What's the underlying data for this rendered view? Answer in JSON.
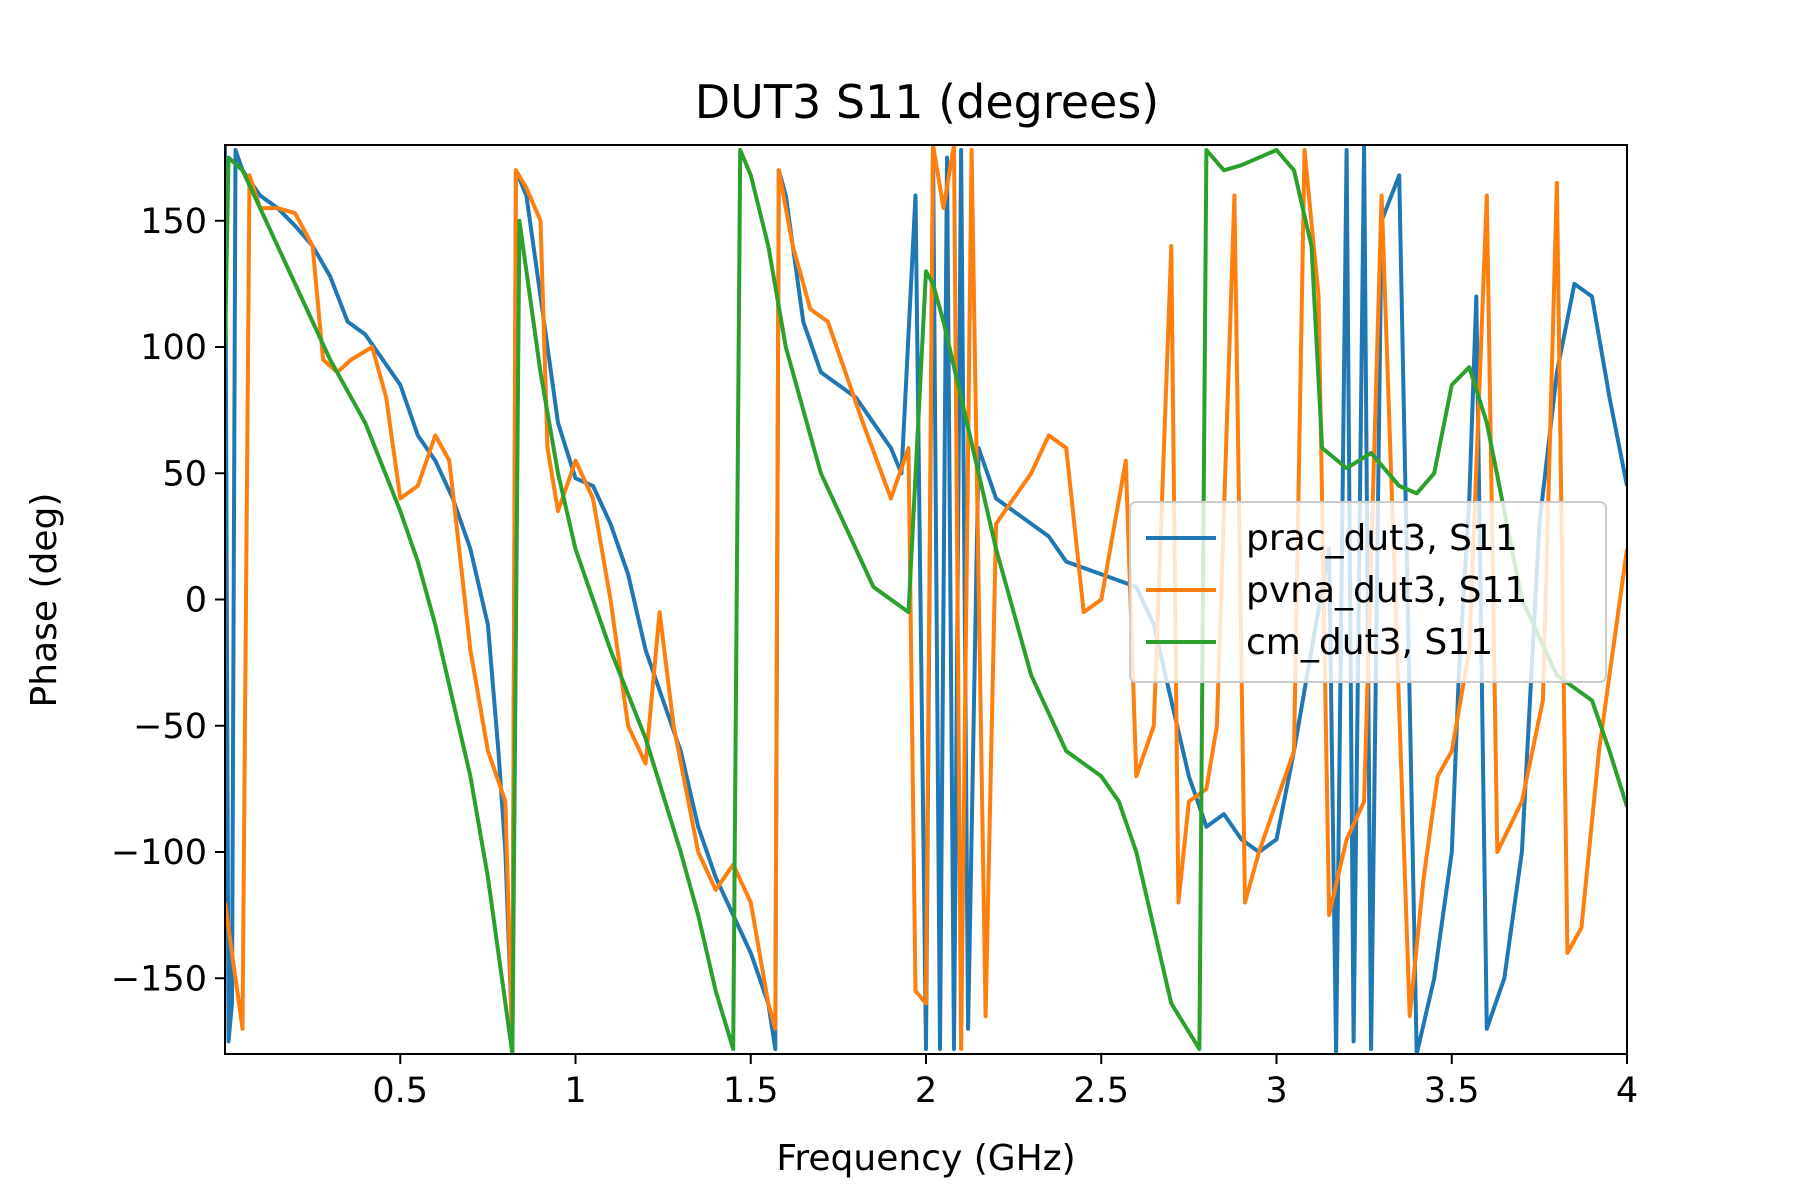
{
  "chart_data": {
    "type": "line",
    "title": "DUT3 S11 (degrees)",
    "xlabel": "Frequency (GHz)",
    "ylabel": "Phase (deg)",
    "xlim": [
      0.0,
      4.0
    ],
    "ylim": [
      -180,
      180
    ],
    "x_ticks": [
      0.5,
      1,
      1.5,
      2,
      2.5,
      3,
      3.5,
      4
    ],
    "x_tick_labels": [
      "0.5",
      "1",
      "1.5",
      "2",
      "2.5",
      "3",
      "3.5",
      "4"
    ],
    "y_ticks": [
      150,
      100,
      50,
      0,
      -50,
      -100,
      -150
    ],
    "y_tick_labels": [
      "150",
      "100",
      "50",
      "0",
      "−50",
      "−100",
      "−150"
    ],
    "grid": false,
    "legend_position": "center-right",
    "series": [
      {
        "name": "prac_dut3, S11",
        "color": "#1f77b4",
        "points": [
          [
            0.0,
            180
          ],
          [
            0.01,
            -175
          ],
          [
            0.02,
            -160
          ],
          [
            0.03,
            178
          ],
          [
            0.05,
            170
          ],
          [
            0.1,
            160
          ],
          [
            0.15,
            155
          ],
          [
            0.2,
            148
          ],
          [
            0.25,
            140
          ],
          [
            0.3,
            128
          ],
          [
            0.35,
            110
          ],
          [
            0.4,
            105
          ],
          [
            0.45,
            95
          ],
          [
            0.5,
            85
          ],
          [
            0.55,
            65
          ],
          [
            0.6,
            55
          ],
          [
            0.65,
            40
          ],
          [
            0.7,
            20
          ],
          [
            0.75,
            -10
          ],
          [
            0.78,
            -60
          ],
          [
            0.8,
            -100
          ],
          [
            0.82,
            -175
          ],
          [
            0.83,
            170
          ],
          [
            0.86,
            160
          ],
          [
            0.9,
            120
          ],
          [
            0.95,
            70
          ],
          [
            1.0,
            48
          ],
          [
            1.05,
            45
          ],
          [
            1.1,
            30
          ],
          [
            1.15,
            10
          ],
          [
            1.2,
            -20
          ],
          [
            1.25,
            -40
          ],
          [
            1.3,
            -60
          ],
          [
            1.35,
            -90
          ],
          [
            1.4,
            -110
          ],
          [
            1.45,
            -125
          ],
          [
            1.5,
            -140
          ],
          [
            1.55,
            -160
          ],
          [
            1.57,
            -178
          ],
          [
            1.58,
            170
          ],
          [
            1.6,
            160
          ],
          [
            1.65,
            110
          ],
          [
            1.7,
            90
          ],
          [
            1.75,
            85
          ],
          [
            1.8,
            80
          ],
          [
            1.85,
            70
          ],
          [
            1.9,
            60
          ],
          [
            1.93,
            50
          ],
          [
            1.97,
            160
          ],
          [
            2.0,
            -178
          ],
          [
            2.02,
            180
          ],
          [
            2.04,
            -178
          ],
          [
            2.06,
            175
          ],
          [
            2.08,
            -178
          ],
          [
            2.1,
            178
          ],
          [
            2.12,
            -170
          ],
          [
            2.15,
            60
          ],
          [
            2.2,
            40
          ],
          [
            2.25,
            35
          ],
          [
            2.3,
            30
          ],
          [
            2.35,
            25
          ],
          [
            2.4,
            15
          ],
          [
            2.5,
            10
          ],
          [
            2.6,
            5
          ],
          [
            2.65,
            -10
          ],
          [
            2.7,
            -40
          ],
          [
            2.75,
            -70
          ],
          [
            2.8,
            -90
          ],
          [
            2.85,
            -85
          ],
          [
            2.9,
            -95
          ],
          [
            2.95,
            -100
          ],
          [
            3.0,
            -95
          ],
          [
            3.05,
            -60
          ],
          [
            3.1,
            -20
          ],
          [
            3.15,
            20
          ],
          [
            3.17,
            -180
          ],
          [
            3.2,
            178
          ],
          [
            3.22,
            -175
          ],
          [
            3.25,
            180
          ],
          [
            3.27,
            -178
          ],
          [
            3.3,
            150
          ],
          [
            3.35,
            168
          ],
          [
            3.4,
            -180
          ],
          [
            3.45,
            -150
          ],
          [
            3.5,
            -100
          ],
          [
            3.52,
            -30
          ],
          [
            3.55,
            40
          ],
          [
            3.57,
            120
          ],
          [
            3.6,
            -170
          ],
          [
            3.65,
            -150
          ],
          [
            3.7,
            -100
          ],
          [
            3.75,
            30
          ],
          [
            3.8,
            90
          ],
          [
            3.85,
            125
          ],
          [
            3.9,
            120
          ],
          [
            3.95,
            80
          ],
          [
            4.0,
            45
          ]
        ]
      },
      {
        "name": "pvna_dut3, S11",
        "color": "#ff7f0e",
        "points": [
          [
            0.0,
            -120
          ],
          [
            0.02,
            -140
          ],
          [
            0.05,
            -170
          ],
          [
            0.07,
            168
          ],
          [
            0.1,
            155
          ],
          [
            0.15,
            155
          ],
          [
            0.2,
            153
          ],
          [
            0.25,
            140
          ],
          [
            0.28,
            95
          ],
          [
            0.32,
            90
          ],
          [
            0.36,
            95
          ],
          [
            0.42,
            100
          ],
          [
            0.46,
            80
          ],
          [
            0.5,
            40
          ],
          [
            0.55,
            45
          ],
          [
            0.6,
            65
          ],
          [
            0.64,
            55
          ],
          [
            0.7,
            -20
          ],
          [
            0.75,
            -60
          ],
          [
            0.8,
            -80
          ],
          [
            0.82,
            -178
          ],
          [
            0.83,
            170
          ],
          [
            0.86,
            163
          ],
          [
            0.9,
            150
          ],
          [
            0.92,
            60
          ],
          [
            0.95,
            35
          ],
          [
            1.0,
            55
          ],
          [
            1.05,
            40
          ],
          [
            1.1,
            0
          ],
          [
            1.15,
            -50
          ],
          [
            1.2,
            -65
          ],
          [
            1.24,
            -5
          ],
          [
            1.28,
            -50
          ],
          [
            1.35,
            -100
          ],
          [
            1.4,
            -115
          ],
          [
            1.45,
            -105
          ],
          [
            1.5,
            -120
          ],
          [
            1.55,
            -160
          ],
          [
            1.57,
            -170
          ],
          [
            1.58,
            170
          ],
          [
            1.62,
            140
          ],
          [
            1.67,
            115
          ],
          [
            1.72,
            110
          ],
          [
            1.77,
            90
          ],
          [
            1.82,
            70
          ],
          [
            1.86,
            55
          ],
          [
            1.9,
            40
          ],
          [
            1.95,
            60
          ],
          [
            1.97,
            -155
          ],
          [
            2.0,
            -160
          ],
          [
            2.02,
            180
          ],
          [
            2.05,
            155
          ],
          [
            2.08,
            180
          ],
          [
            2.1,
            -178
          ],
          [
            2.13,
            178
          ],
          [
            2.17,
            -165
          ],
          [
            2.2,
            30
          ],
          [
            2.25,
            40
          ],
          [
            2.3,
            50
          ],
          [
            2.35,
            65
          ],
          [
            2.4,
            60
          ],
          [
            2.45,
            -5
          ],
          [
            2.5,
            0
          ],
          [
            2.57,
            55
          ],
          [
            2.6,
            -70
          ],
          [
            2.65,
            -50
          ],
          [
            2.7,
            140
          ],
          [
            2.72,
            -120
          ],
          [
            2.75,
            -80
          ],
          [
            2.8,
            -75
          ],
          [
            2.83,
            -50
          ],
          [
            2.88,
            160
          ],
          [
            2.91,
            -120
          ],
          [
            2.95,
            -100
          ],
          [
            3.0,
            -80
          ],
          [
            3.05,
            -60
          ],
          [
            3.08,
            178
          ],
          [
            3.12,
            120
          ],
          [
            3.15,
            -125
          ],
          [
            3.2,
            -95
          ],
          [
            3.25,
            -80
          ],
          [
            3.3,
            160
          ],
          [
            3.38,
            -165
          ],
          [
            3.42,
            -110
          ],
          [
            3.46,
            -70
          ],
          [
            3.5,
            -60
          ],
          [
            3.55,
            -20
          ],
          [
            3.6,
            160
          ],
          [
            3.63,
            -100
          ],
          [
            3.7,
            -80
          ],
          [
            3.76,
            -40
          ],
          [
            3.8,
            165
          ],
          [
            3.83,
            -140
          ],
          [
            3.87,
            -130
          ],
          [
            3.92,
            -60
          ],
          [
            3.96,
            -20
          ],
          [
            4.0,
            20
          ]
        ]
      },
      {
        "name": "cm_dut3, S11",
        "color": "#2ca02c",
        "points": [
          [
            0.0,
            100
          ],
          [
            0.01,
            175
          ],
          [
            0.05,
            170
          ],
          [
            0.1,
            155
          ],
          [
            0.2,
            125
          ],
          [
            0.3,
            95
          ],
          [
            0.4,
            70
          ],
          [
            0.5,
            35
          ],
          [
            0.55,
            15
          ],
          [
            0.6,
            -10
          ],
          [
            0.65,
            -40
          ],
          [
            0.7,
            -70
          ],
          [
            0.75,
            -110
          ],
          [
            0.8,
            -160
          ],
          [
            0.82,
            -180
          ],
          [
            0.84,
            150
          ],
          [
            0.9,
            90
          ],
          [
            0.95,
            50
          ],
          [
            1.0,
            20
          ],
          [
            1.1,
            -20
          ],
          [
            1.2,
            -55
          ],
          [
            1.3,
            -100
          ],
          [
            1.35,
            -125
          ],
          [
            1.4,
            -155
          ],
          [
            1.45,
            -178
          ],
          [
            1.47,
            178
          ],
          [
            1.5,
            168
          ],
          [
            1.55,
            140
          ],
          [
            1.6,
            100
          ],
          [
            1.65,
            75
          ],
          [
            1.7,
            50
          ],
          [
            1.75,
            35
          ],
          [
            1.8,
            20
          ],
          [
            1.85,
            5
          ],
          [
            1.9,
            0
          ],
          [
            1.95,
            -5
          ],
          [
            2.0,
            130
          ],
          [
            2.02,
            125
          ],
          [
            2.05,
            110
          ],
          [
            2.1,
            80
          ],
          [
            2.15,
            50
          ],
          [
            2.2,
            20
          ],
          [
            2.3,
            -30
          ],
          [
            2.4,
            -60
          ],
          [
            2.5,
            -70
          ],
          [
            2.55,
            -80
          ],
          [
            2.6,
            -100
          ],
          [
            2.65,
            -130
          ],
          [
            2.7,
            -160
          ],
          [
            2.78,
            -178
          ],
          [
            2.8,
            178
          ],
          [
            2.85,
            170
          ],
          [
            2.9,
            172
          ],
          [
            3.0,
            178
          ],
          [
            3.05,
            170
          ],
          [
            3.1,
            140
          ],
          [
            3.13,
            60
          ],
          [
            3.2,
            52
          ],
          [
            3.27,
            58
          ],
          [
            3.35,
            45
          ],
          [
            3.4,
            42
          ],
          [
            3.45,
            50
          ],
          [
            3.5,
            85
          ],
          [
            3.55,
            92
          ],
          [
            3.6,
            70
          ],
          [
            3.7,
            0
          ],
          [
            3.8,
            -30
          ],
          [
            3.9,
            -40
          ],
          [
            3.95,
            -60
          ],
          [
            4.0,
            -82
          ]
        ]
      }
    ]
  }
}
